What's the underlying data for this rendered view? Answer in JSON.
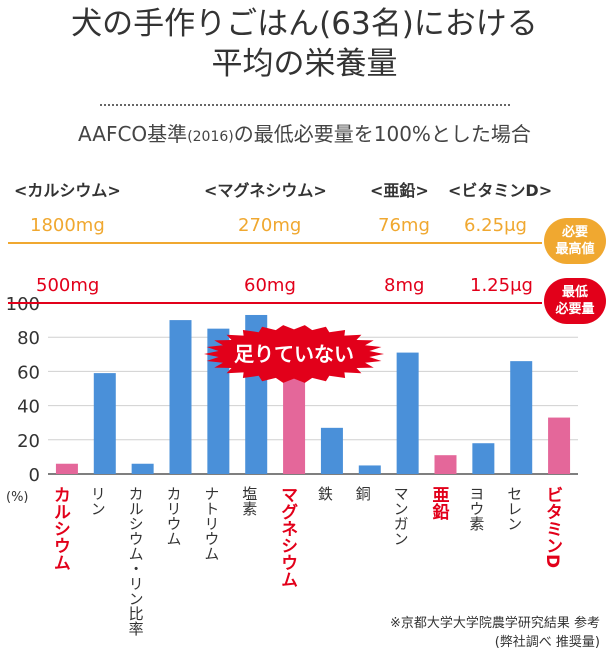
{
  "title_line1": "犬の手作りごはん(63名)における",
  "title_line2": "平均の栄養量",
  "subtitle": "AAFCO基準",
  "subtitle_year": "(2016)",
  "subtitle_rest": "の最低必要量を100%とした場合",
  "nutrients": [
    {
      "label": "<カルシウム>",
      "max": "1800mg",
      "min": "500mg"
    },
    {
      "label": "<マグネシウム>",
      "max": "270mg",
      "min": "60mg"
    },
    {
      "label": "<亜鉛>",
      "max": "76mg",
      "min": "8mg"
    },
    {
      "label": "<ビタミンD>",
      "max": "6.25μg",
      "min": "1.25μg"
    }
  ],
  "max_badge": [
    "必要",
    "最高値"
  ],
  "min_badge": [
    "最低",
    "必要量"
  ],
  "callout": "足りていない",
  "footnote_line1": "※京都大学大学院農学研究結果 参考",
  "footnote_line2": "(弊社調べ 推奨量)",
  "colors": {
    "blue": "#4a90d9",
    "pink": "#e4679a",
    "red": "#e2001a",
    "orange": "#f0a830",
    "grid": "#d0d0d0"
  },
  "chart_data": {
    "type": "bar",
    "categories": [
      "カルシウム",
      "リン",
      "カルシウム・リン比率",
      "カリウム",
      "ナトリウム",
      "塩素",
      "マグネシウム",
      "鉄",
      "銅",
      "マンガン",
      "亜鉛",
      "ヨウ素",
      "セレン",
      "ビタミンD"
    ],
    "values": [
      6,
      59,
      6,
      90,
      85,
      93,
      78,
      27,
      5,
      71,
      11,
      18,
      66,
      33
    ],
    "highlighted": [
      true,
      false,
      false,
      false,
      false,
      false,
      true,
      false,
      false,
      false,
      true,
      false,
      false,
      true
    ],
    "ylim": [
      0,
      100
    ],
    "yticks": [
      0,
      20,
      40,
      60,
      80,
      100
    ],
    "yunit": "(%)",
    "grid": true
  }
}
